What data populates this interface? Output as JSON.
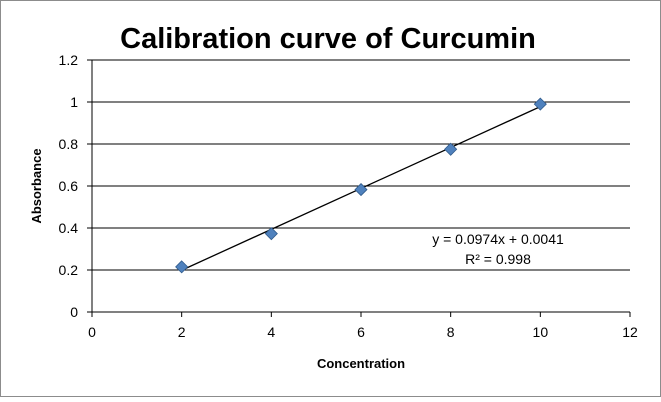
{
  "chart_data": {
    "type": "scatter",
    "title": "Calibration curve of Curcumin",
    "xlabel": "Concentration",
    "ylabel": "Absorbance",
    "xlim": [
      0,
      12
    ],
    "ylim": [
      0,
      1.2
    ],
    "x_ticks": [
      "0",
      "2",
      "4",
      "6",
      "8",
      "10",
      "12"
    ],
    "y_ticks": [
      "0",
      "0.2",
      "0.4",
      "0.6",
      "0.8",
      "1",
      "1.2"
    ],
    "grid": "horizontal",
    "legend": "none",
    "series": [
      {
        "x": [
          2,
          4,
          6,
          8,
          10
        ],
        "y": [
          0.215,
          0.373,
          0.583,
          0.775,
          0.99
        ],
        "color": "#4f81bd",
        "marker": "diamond"
      }
    ],
    "trendline": {
      "type": "linear",
      "slope": 0.0974,
      "intercept": 0.0041,
      "x_range": [
        2,
        10
      ],
      "color": "#000000"
    },
    "annotations": {
      "equation": "y = 0.0974x + 0.0041",
      "r_squared": "R² = 0.998"
    }
  }
}
